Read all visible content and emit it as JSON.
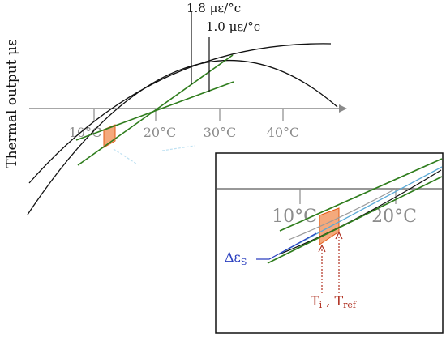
{
  "ylabel": "Thermal output με",
  "main": {
    "ticks": [
      "10°C",
      "20°C",
      "30°C",
      "40°C"
    ],
    "annotations": [
      "1.8 με/°c",
      "1.0 με/°c"
    ]
  },
  "inset": {
    "ticks": [
      "10°C",
      "20°C"
    ],
    "delta_label": "Δε",
    "delta_sub": "S",
    "t_label": "T",
    "t_sub_i": "i",
    "t_sep": " , T",
    "t_sub_ref": "ref"
  },
  "colors": {
    "curve": "#111111",
    "tangent": "#2f7d1d",
    "axis": "#8a8a8a",
    "tick_text": "#8c8c8c",
    "highlight_fill": "#f4a97c",
    "highlight_stroke": "#e25a15",
    "delta": "#2a3fbf",
    "temp": "#b03020"
  }
}
